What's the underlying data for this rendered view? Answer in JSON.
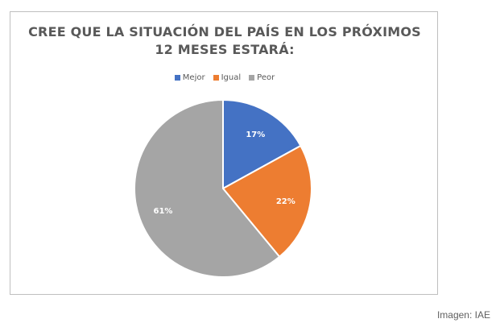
{
  "chart_data": {
    "type": "pie",
    "title_lines": [
      "CREE QUE LA SITUACIÓN DEL PAÍS EN LOS PRÓXIMOS",
      "12 MESES ESTARÁ:"
    ],
    "legend_position": "top",
    "slices": [
      {
        "name": "Mejor",
        "value": 17,
        "label": "17%",
        "color": "#4472c4"
      },
      {
        "name": "Igual",
        "value": 22,
        "label": "22%",
        "color": "#ed7d31"
      },
      {
        "name": "Peor",
        "value": 61,
        "label": "61%",
        "color": "#a5a5a5"
      }
    ]
  },
  "source_credit": "Imagen: IAE"
}
